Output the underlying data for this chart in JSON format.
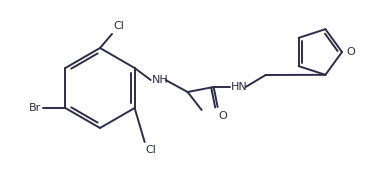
{
  "bg_color": "#ffffff",
  "line_color": "#2d2d4a",
  "text_color": "#2d2d4a",
  "label_br": "Br",
  "label_cl1": "Cl",
  "label_cl2": "Cl",
  "label_nh1": "NH",
  "label_nh2": "HN",
  "label_o": "O",
  "label_o_fur": "O",
  "linewidth": 1.4,
  "figsize": [
    3.66,
    1.79
  ],
  "dpi": 100
}
